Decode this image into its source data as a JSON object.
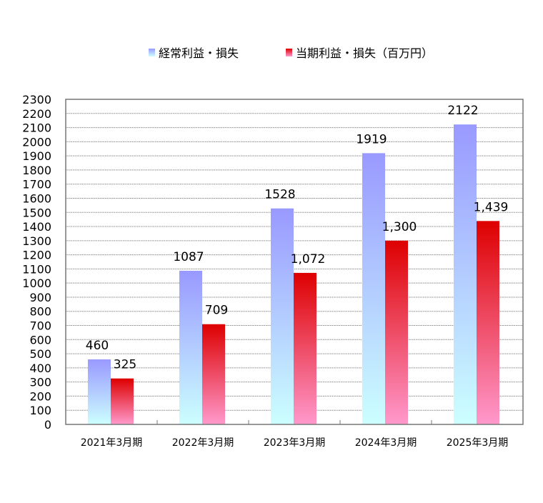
{
  "chart_data": {
    "type": "bar",
    "title": "",
    "xlabel": "",
    "ylabel": "",
    "ylim": [
      0,
      2300
    ],
    "ytick_step": 100,
    "grid": true,
    "legend_position": "top",
    "categories": [
      "2021年3月期",
      "2022年3月期",
      "2023年3月期",
      "2024年3月期",
      "2025年3月期"
    ],
    "series": [
      {
        "name": "経常利益・損失",
        "values": [
          460,
          1087,
          1528,
          1919,
          2122
        ],
        "labels": [
          "460",
          "1087",
          "1528",
          "1919",
          "2122"
        ],
        "color_top": "#9999ff",
        "color_bottom": "#ccffff"
      },
      {
        "name": "当期利益・損失（百万円）",
        "values": [
          325,
          709,
          1072,
          1300,
          1439
        ],
        "labels": [
          "325",
          "709",
          "1,072",
          "1,300",
          "1,439"
        ],
        "color_top": "#dd0000",
        "color_bottom": "#ff99cc"
      }
    ]
  }
}
